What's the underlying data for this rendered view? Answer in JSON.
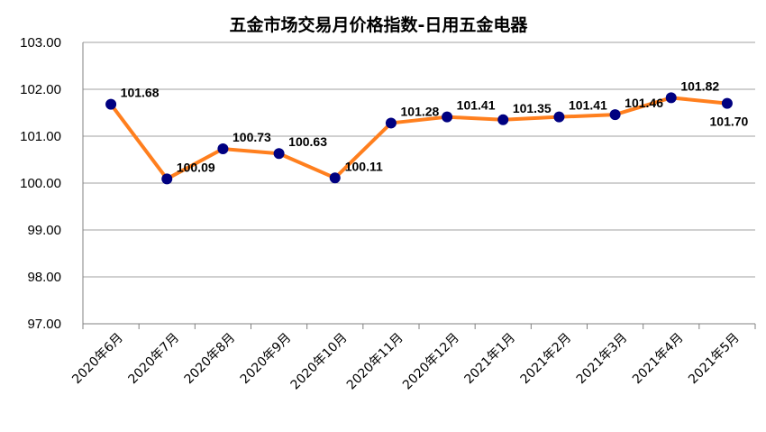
{
  "chart_data": {
    "type": "line",
    "title": "五金市场交易月价格指数-日用五金电器",
    "categories": [
      "2020年6月",
      "2020年7月",
      "2020年8月",
      "2020年9月",
      "2020年10月",
      "2020年11月",
      "2020年12月",
      "2021年1月",
      "2021年2月",
      "2021年3月",
      "2021年4月",
      "2021年5月"
    ],
    "series": [
      {
        "values": [
          101.68,
          100.09,
          100.73,
          100.63,
          100.11,
          101.28,
          101.41,
          101.35,
          101.41,
          101.46,
          101.82,
          101.7
        ],
        "data_labels": [
          "101.68",
          "100.09",
          "100.73",
          "100.63",
          "100.11",
          "101.28",
          "101.41",
          "101.35",
          "101.41",
          "101.46",
          "101.82",
          "101.70"
        ]
      }
    ],
    "ylim": [
      97.0,
      103.0
    ],
    "yticks": [
      "97.00",
      "98.00",
      "99.00",
      "100.00",
      "101.00",
      "102.00",
      "103.00"
    ],
    "xlabel": "",
    "ylabel": "",
    "grid": "horizontal",
    "line_color": "#FF7F1E",
    "marker_color": "#000080"
  }
}
